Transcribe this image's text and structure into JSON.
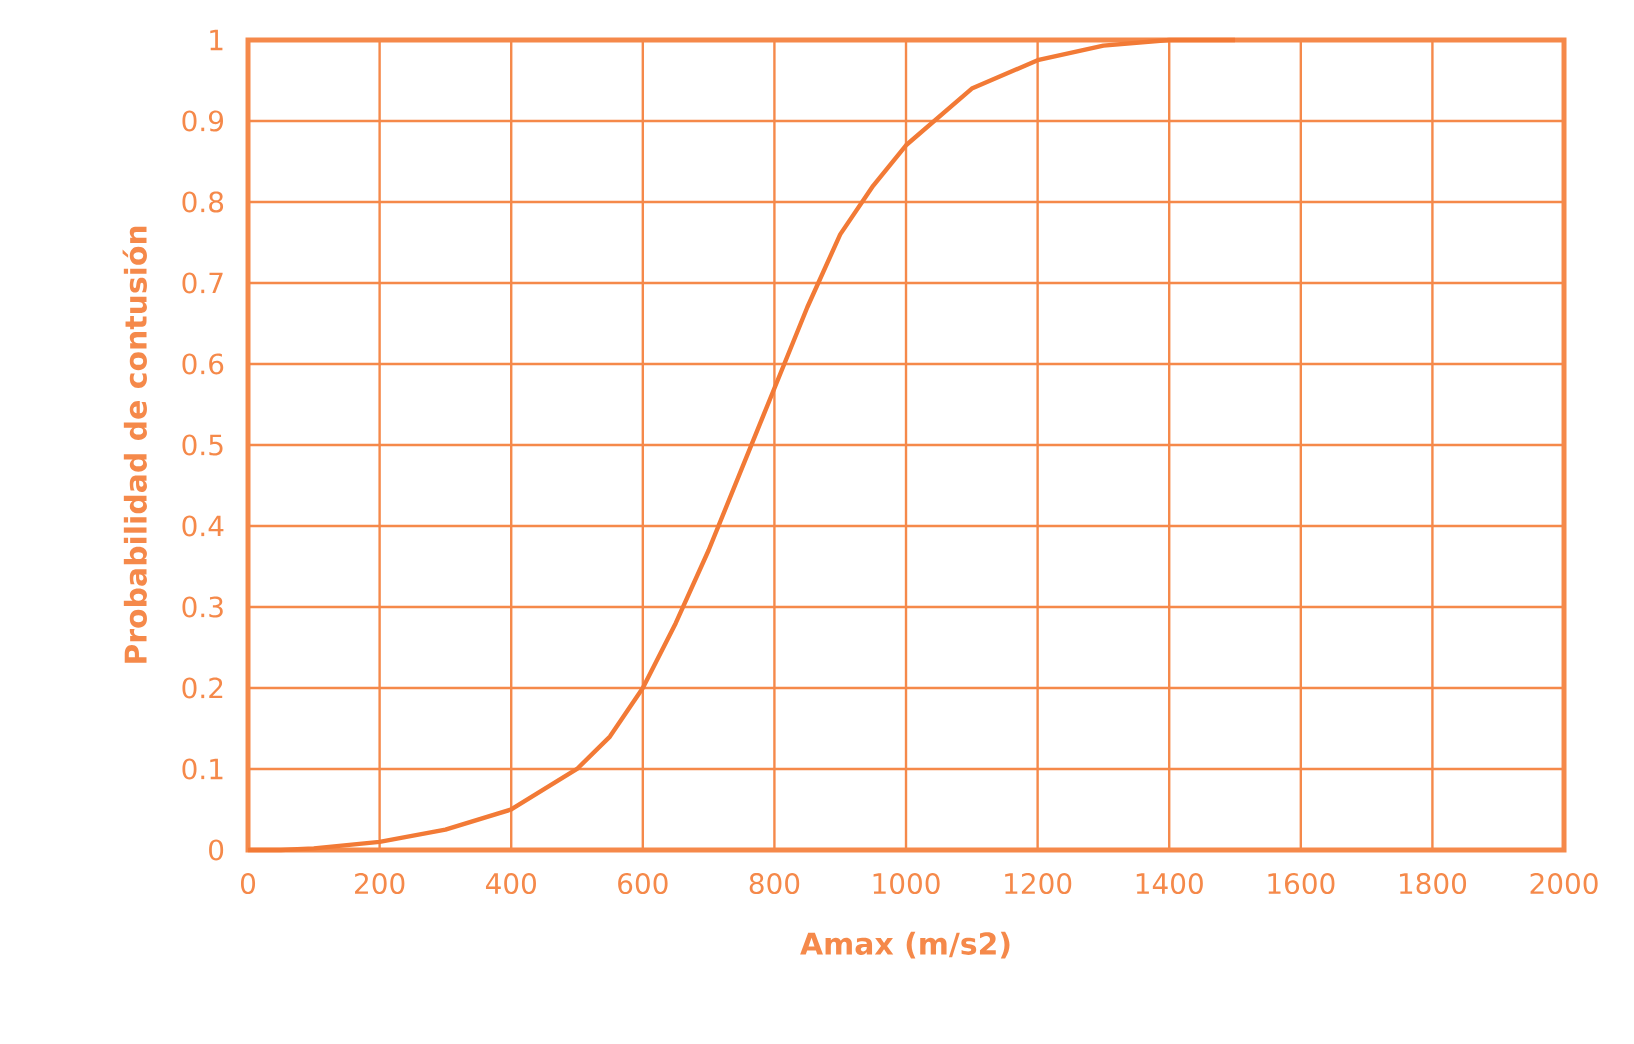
{
  "chart_data": {
    "type": "line",
    "xlabel": "Amax (m/s2)",
    "ylabel": "Probabilidad de contusión",
    "x": [
      0,
      50,
      100,
      200,
      300,
      400,
      500,
      550,
      600,
      650,
      700,
      750,
      800,
      850,
      900,
      950,
      1000,
      1100,
      1200,
      1300,
      1400,
      1500
    ],
    "series": [
      {
        "color": "#f27a36",
        "values": [
          0,
          0,
          0.002,
          0.01,
          0.025,
          0.05,
          0.1,
          0.14,
          0.2,
          0.28,
          0.37,
          0.47,
          0.57,
          0.67,
          0.76,
          0.82,
          0.87,
          0.94,
          0.975,
          0.993,
          1,
          1
        ]
      }
    ],
    "xlim": [
      0,
      2000
    ],
    "xticks": [
      0,
      200,
      400,
      600,
      800,
      1000,
      1200,
      1400,
      1600,
      1800,
      2000
    ],
    "ylim": [
      0,
      1
    ],
    "yticks": [
      0,
      0.1,
      0.2,
      0.3,
      0.4,
      0.5,
      0.6,
      0.7,
      0.8,
      0.9,
      1
    ],
    "grid": true,
    "marker": "none",
    "line_style": "solid"
  }
}
